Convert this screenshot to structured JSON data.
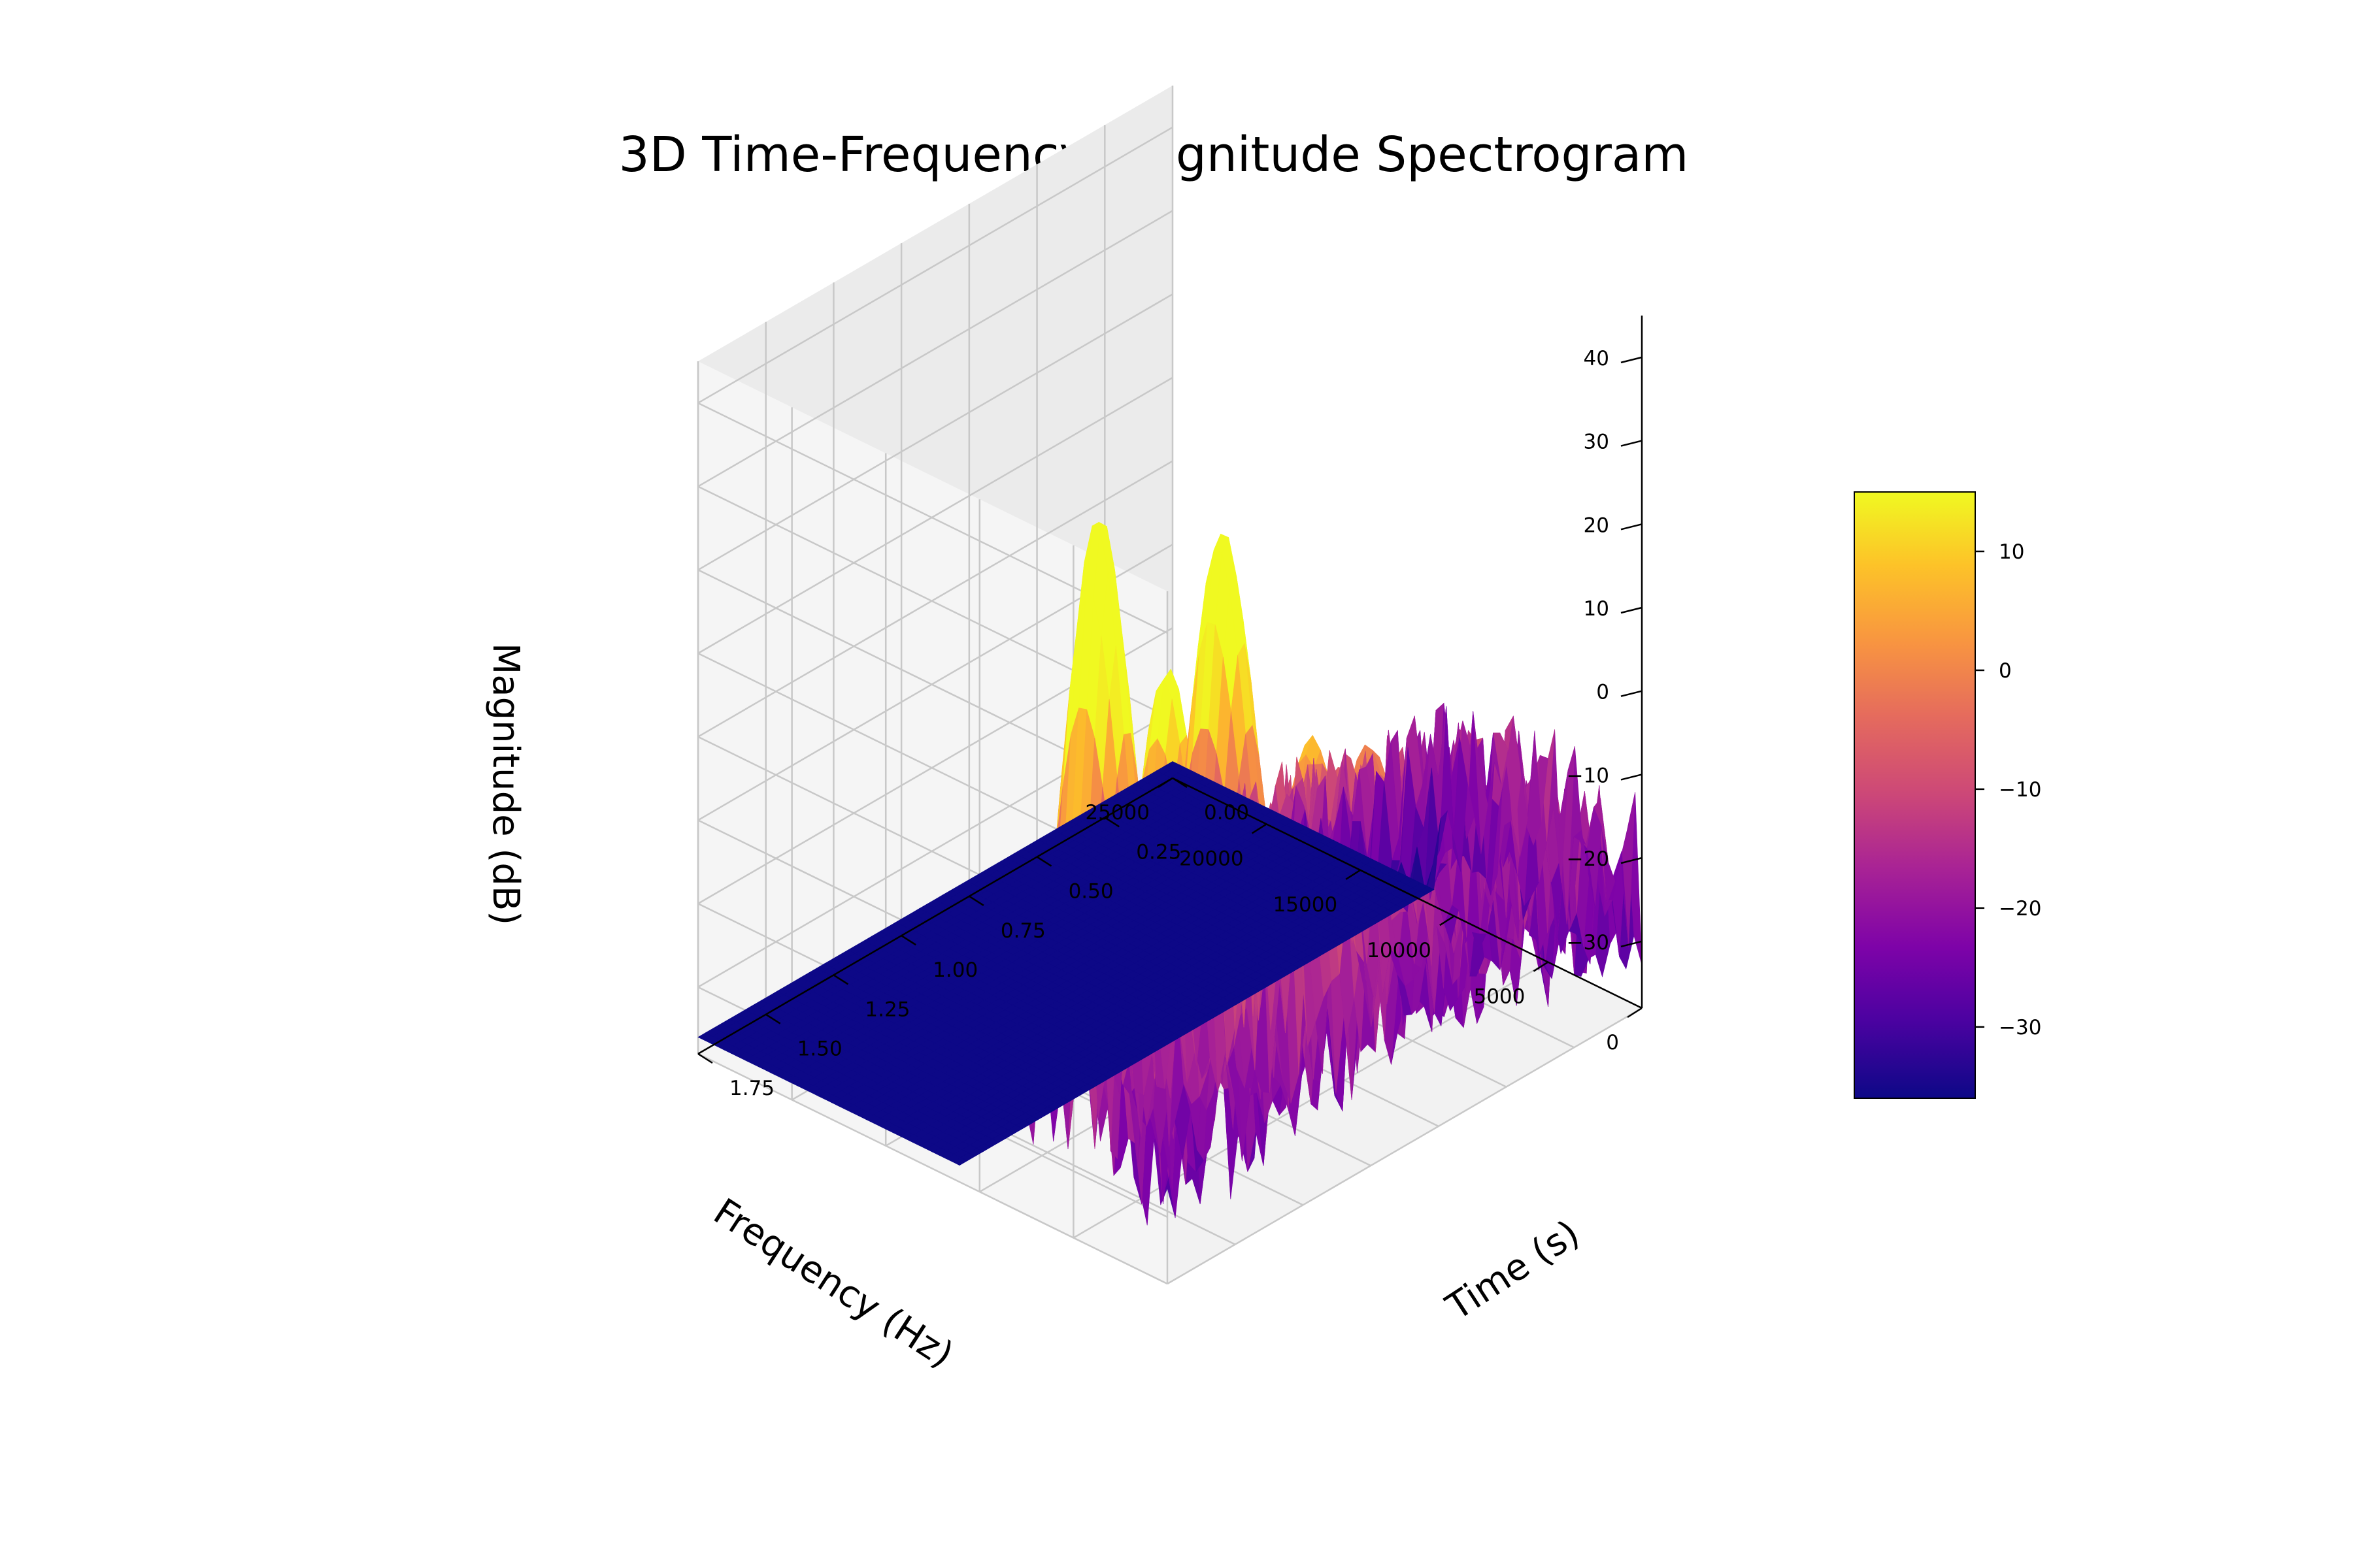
{
  "chart_data": {
    "type": "surface3d",
    "title": "3D Time-Frequency-Magnitude Spectrogram",
    "xlabel": "Frequency (Hz)",
    "ylabel": "Time (s)",
    "zlabel": "Magnitude (dB)",
    "x_ticks": [
      0,
      5000,
      10000,
      15000,
      20000,
      25000
    ],
    "x_tick_labels": [
      "0",
      "5000",
      "10000",
      "15000",
      "20000",
      "25000"
    ],
    "y_ticks": [
      0.0,
      0.25,
      0.5,
      0.75,
      1.0,
      1.25,
      1.5,
      1.75
    ],
    "y_tick_labels": [
      "0.00",
      "0.25",
      "0.50",
      "0.75",
      "1.00",
      "1.25",
      "1.50",
      "1.75"
    ],
    "z_ticks": [
      -30,
      -20,
      -10,
      0,
      10,
      20,
      30,
      40
    ],
    "z_tick_labels": [
      "−30",
      "−20",
      "−10",
      "0",
      "10",
      "20",
      "30",
      "40"
    ],
    "xlim": [
      0,
      25000
    ],
    "ylim": [
      0,
      1.75
    ],
    "zlim": [
      -38,
      45
    ],
    "grid": true,
    "colormap": "plasma",
    "colorbar": {
      "ticks": [
        -30,
        -20,
        -10,
        0,
        10
      ],
      "tick_labels": [
        "−30",
        "−20",
        "−10",
        "0",
        "10"
      ],
      "range": [
        -36,
        15
      ]
    },
    "surface": {
      "floor": -36,
      "frequency_range": [
        0,
        11000
      ],
      "peaks": [
        {
          "frequency": 8000,
          "time": 1.45,
          "magnitude": 40
        },
        {
          "frequency": 6500,
          "time": 1.1,
          "magnitude": 33
        },
        {
          "frequency": 5800,
          "time": 1.35,
          "magnitude": 22
        },
        {
          "frequency": 3200,
          "time": 1.0,
          "magnitude": 10
        },
        {
          "frequency": 4500,
          "time": 0.7,
          "magnitude": 2
        },
        {
          "frequency": 6000,
          "time": 0.35,
          "magnitude": -8
        },
        {
          "frequency": 9000,
          "time": 1.2,
          "magnitude": -8
        }
      ]
    }
  }
}
